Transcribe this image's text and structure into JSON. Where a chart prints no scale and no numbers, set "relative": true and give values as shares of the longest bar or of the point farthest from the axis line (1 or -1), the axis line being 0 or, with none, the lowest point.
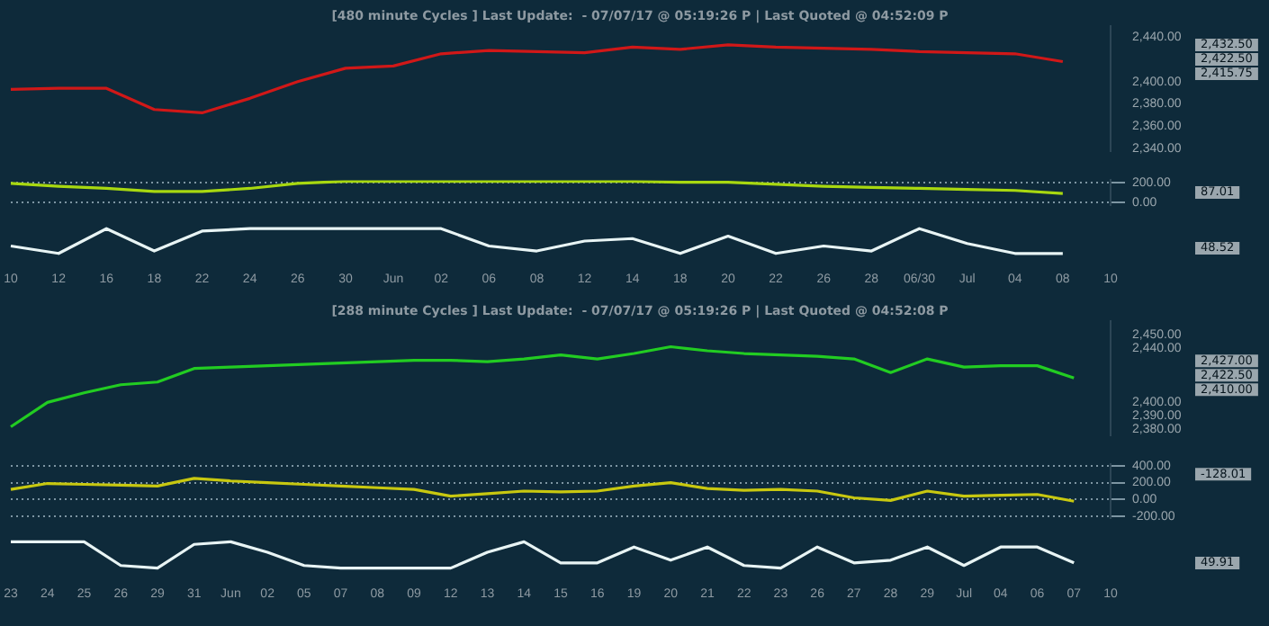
{
  "chart_data": [
    {
      "type": "line",
      "title": "[480 minute Cycles ] Last Update:  - 07/07/17 @ 05:19:26 P | Last Quoted @ 04:52:09 P",
      "categories": [
        null,
        null,
        null,
        null,
        null,
        null,
        null,
        null,
        null,
        null,
        null,
        null,
        null,
        null,
        null,
        null,
        null,
        null,
        null,
        null,
        null,
        null,
        null,
        null
      ],
      "ylim": [
        2338,
        2450
      ],
      "yticks": [
        {
          "value": 2340,
          "label": "2,340.00"
        },
        {
          "value": 2360,
          "label": "2,360.00"
        },
        {
          "value": 2380,
          "label": "2,380.00"
        },
        {
          "value": 2400,
          "label": "2,400.00"
        },
        {
          "value": 2440,
          "label": "2,440.00"
        }
      ],
      "tick_labels": "y",
      "grid": false,
      "legend": false,
      "marker": "none",
      "series": [
        {
          "color": "#d01818",
          "values": [
            2393,
            2394,
            2394,
            2375,
            2372,
            2385,
            2400,
            2412,
            2414,
            2425,
            2428,
            2427,
            2426,
            2431,
            2429,
            2433,
            2431,
            2430,
            2429,
            2427,
            2426,
            2425,
            2418,
            null
          ]
        }
      ],
      "annotations": [
        "2,432.50",
        "2,422.50",
        "2,415.75"
      ]
    },
    {
      "type": "line",
      "categories": [
        null,
        null,
        null,
        null,
        null,
        null,
        null,
        null,
        null,
        null,
        null,
        null,
        null,
        null,
        null,
        null,
        null,
        null,
        null,
        null,
        null,
        null,
        null,
        null
      ],
      "ylim": [
        -20,
        220
      ],
      "yticks": [
        {
          "value": 200,
          "label": "200.00"
        },
        {
          "value": 0,
          "label": "0.00"
        }
      ],
      "tick_labels": "y",
      "grid": "y",
      "legend": false,
      "marker": "none",
      "series": [
        {
          "color": "#a8d810",
          "values": [
            190,
            160,
            140,
            110,
            110,
            140,
            190,
            210,
            210,
            210,
            210,
            210,
            210,
            210,
            200,
            200,
            180,
            160,
            150,
            140,
            130,
            120,
            90,
            null
          ]
        }
      ],
      "annotations": [
        "87.01"
      ]
    },
    {
      "type": "line",
      "relative": true,
      "categories": [
        "10",
        "12",
        "16",
        "18",
        "22",
        "24",
        "26",
        "30",
        "Jun",
        "02",
        "06",
        "08",
        "12",
        "14",
        "18",
        "20",
        "22",
        "26",
        "28",
        "06/30",
        "Jul",
        "04",
        "08",
        "10"
      ],
      "tick_labels": "x",
      "grid": false,
      "legend": false,
      "marker": "none",
      "series": [
        {
          "color": "#e8f4f4",
          "values": [
            0.3,
            0,
            1,
            0.1,
            0.9,
            1,
            1,
            1,
            1,
            1,
            0.3,
            0.1,
            0.5,
            0.6,
            0,
            0.7,
            0,
            0.3,
            0.1,
            1,
            0.4,
            0,
            0,
            null
          ]
        }
      ],
      "annotations": [
        "48.52"
      ]
    },
    {
      "type": "line",
      "title": "[288 minute Cycles ] Last Update:  - 07/07/17 @ 05:19:26 P | Last Quoted @ 04:52:08 P",
      "categories": [
        null,
        null,
        null,
        null,
        null,
        null,
        null,
        null,
        null,
        null,
        null,
        null,
        null,
        null,
        null,
        null,
        null,
        null,
        null,
        null,
        null,
        null,
        null,
        null,
        null,
        null,
        null,
        null,
        null,
        null,
        null
      ],
      "ylim": [
        2376,
        2460
      ],
      "yticks": [
        {
          "value": 2380,
          "label": "2,380.00"
        },
        {
          "value": 2390,
          "label": "2,390.00"
        },
        {
          "value": 2400,
          "label": "2,400.00"
        },
        {
          "value": 2440,
          "label": "2,440.00"
        },
        {
          "value": 2450,
          "label": "2,450.00"
        }
      ],
      "tick_labels": "y",
      "grid": false,
      "legend": false,
      "marker": "none",
      "series": [
        {
          "color": "#22cc22",
          "values": [
            2382,
            2400,
            2407,
            2413,
            2415,
            2425,
            2426,
            2427,
            2428,
            2429,
            2430,
            2431,
            2431,
            2430,
            2432,
            2435,
            2432,
            2436,
            2441,
            2438,
            2436,
            2435,
            2434,
            2432,
            2422,
            2432,
            2426,
            2427,
            2427,
            2418,
            null
          ]
        }
      ],
      "annotations": [
        "2,427.00",
        "2,422.50",
        "2,410.00"
      ]
    },
    {
      "type": "line",
      "categories": [
        null,
        null,
        null,
        null,
        null,
        null,
        null,
        null,
        null,
        null,
        null,
        null,
        null,
        null,
        null,
        null,
        null,
        null,
        null,
        null,
        null,
        null,
        null,
        null,
        null,
        null,
        null,
        null,
        null,
        null,
        null
      ],
      "ylim": [
        -215,
        415
      ],
      "yticks": [
        {
          "value": 400,
          "label": "400.00"
        },
        {
          "value": 200,
          "label": "200.00"
        },
        {
          "value": 0,
          "label": "0.00"
        },
        {
          "value": -200,
          "label": "-200.00"
        }
      ],
      "tick_labels": "y",
      "grid": "y",
      "legend": false,
      "marker": "none",
      "series": [
        {
          "color": "#c8c810",
          "values": [
            120,
            190,
            180,
            170,
            160,
            250,
            220,
            200,
            180,
            160,
            140,
            120,
            40,
            70,
            100,
            90,
            100,
            160,
            200,
            130,
            110,
            120,
            100,
            20,
            -10,
            100,
            40,
            50,
            60,
            -20,
            null
          ]
        }
      ],
      "annotations": [
        "-128.01"
      ]
    },
    {
      "type": "line",
      "relative": true,
      "categories": [
        "23",
        "24",
        "25",
        "26",
        "29",
        "31",
        "Jun",
        "02",
        "05",
        "07",
        "08",
        "09",
        "12",
        "13",
        "14",
        "15",
        "16",
        "19",
        "20",
        "21",
        "22",
        "23",
        "26",
        "27",
        "28",
        "29",
        "Jul",
        "04",
        "06",
        "07",
        "10"
      ],
      "tick_labels": "x",
      "grid": false,
      "legend": false,
      "marker": "none",
      "series": [
        {
          "color": "#e8f4f4",
          "values": [
            1,
            1,
            1,
            0.1,
            0,
            0.9,
            1,
            0.6,
            0.1,
            0,
            0,
            0,
            0,
            0.6,
            1,
            0.2,
            0.2,
            0.8,
            0.3,
            0.8,
            0.1,
            0,
            0.8,
            0.2,
            0.3,
            0.8,
            0.1,
            0.8,
            0.8,
            0.2,
            null
          ]
        }
      ],
      "annotations": [
        "49.91"
      ]
    }
  ]
}
